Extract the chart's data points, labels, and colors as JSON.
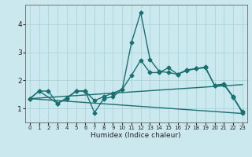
{
  "xlabel": "Humidex (Indice chaleur)",
  "xlim": [
    -0.5,
    23.5
  ],
  "ylim": [
    0.5,
    4.7
  ],
  "yticks": [
    1,
    2,
    3,
    4
  ],
  "xticks": [
    0,
    1,
    2,
    3,
    4,
    5,
    6,
    7,
    8,
    9,
    10,
    11,
    12,
    13,
    14,
    15,
    16,
    17,
    18,
    19,
    20,
    21,
    22,
    23
  ],
  "bg_color": "#cce8ef",
  "grid_color": "#aad4dc",
  "line_color": "#1a7070",
  "lines": [
    {
      "x": [
        0,
        1,
        2,
        3,
        4,
        5,
        6,
        7,
        8,
        9,
        10,
        11,
        12,
        13,
        14,
        15,
        16,
        17,
        18,
        19,
        20,
        21,
        22,
        23
      ],
      "y": [
        1.35,
        1.62,
        1.62,
        1.18,
        1.35,
        1.62,
        1.62,
        1.28,
        1.42,
        1.55,
        1.68,
        3.35,
        4.42,
        2.75,
        2.32,
        2.28,
        2.22,
        2.38,
        2.42,
        2.45,
        1.82,
        1.85,
        1.4,
        0.85
      ],
      "marker": "D",
      "markersize": 2.5,
      "linewidth": 1.0
    },
    {
      "x": [
        0,
        1,
        3,
        4,
        5,
        6,
        7,
        8,
        9,
        10,
        11,
        12,
        13,
        14,
        15,
        16,
        17,
        18,
        19,
        20,
        21,
        22,
        23
      ],
      "y": [
        1.35,
        1.62,
        1.18,
        1.38,
        1.62,
        1.62,
        0.85,
        1.35,
        1.42,
        1.68,
        2.18,
        2.72,
        2.28,
        2.28,
        2.45,
        2.22,
        2.35,
        2.42,
        2.48,
        1.82,
        1.88,
        1.42,
        0.88
      ],
      "marker": "D",
      "markersize": 2.5,
      "linewidth": 1.0
    },
    {
      "x": [
        0,
        23
      ],
      "y": [
        1.35,
        1.85
      ],
      "marker": null,
      "linewidth": 1.0
    },
    {
      "x": [
        0,
        23
      ],
      "y": [
        1.35,
        0.82
      ],
      "marker": null,
      "linewidth": 1.0
    }
  ],
  "xlabel_fontsize": 6.5,
  "xtick_fontsize": 5.0,
  "ytick_fontsize": 6.5
}
